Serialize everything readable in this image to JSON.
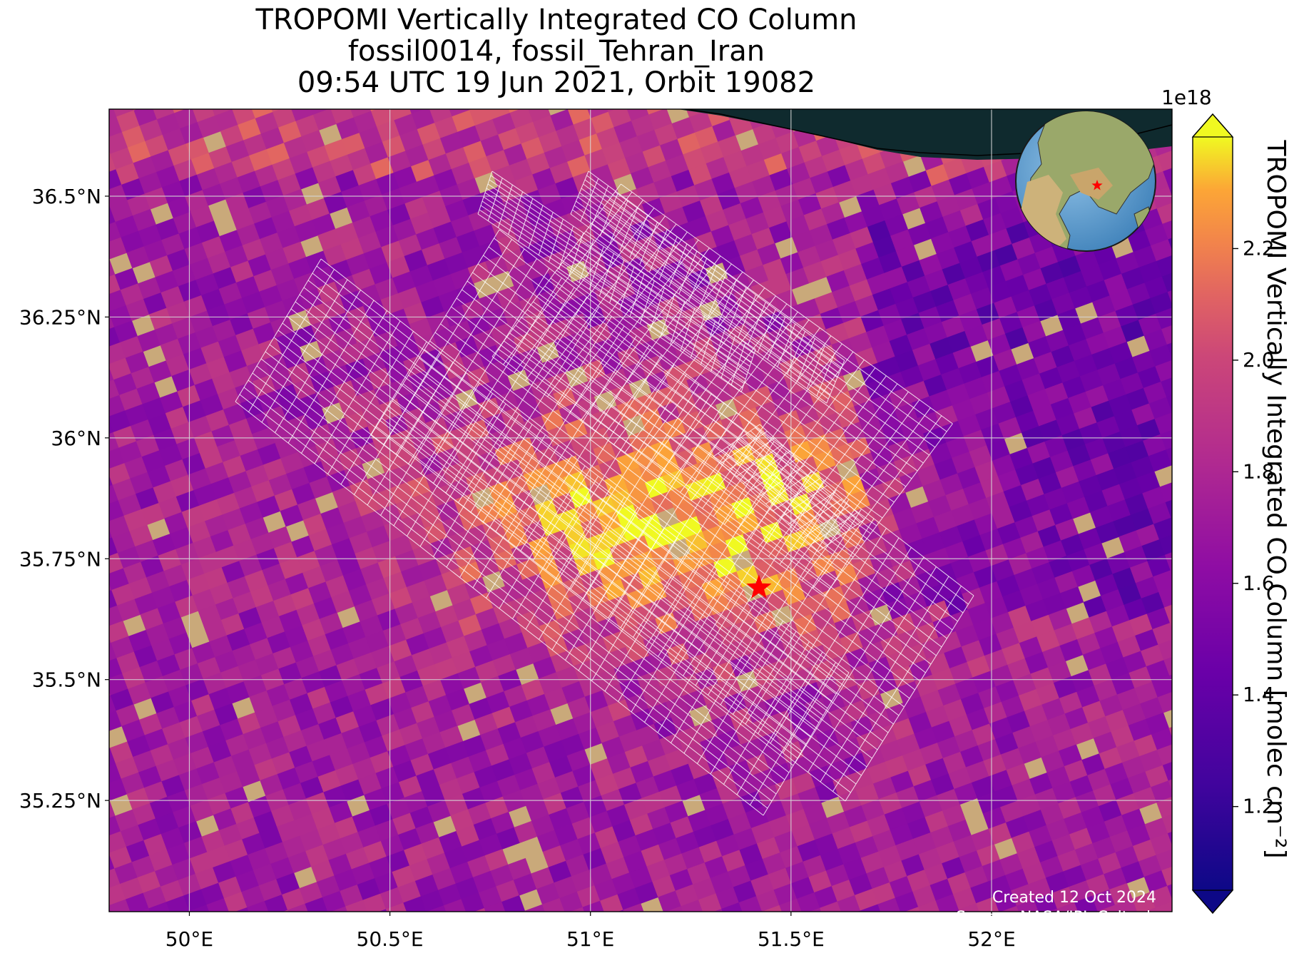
{
  "title": {
    "line1": "TROPOMI Vertically Integrated CO Column",
    "line2": "fossil0014, fossil_Tehran_Iran",
    "line3": "09:54 UTC 19 Jun 2021, Orbit 19082"
  },
  "credits": {
    "created": "Created 12 Oct 2024",
    "source": "Source: NASA/JPL-Caltech"
  },
  "map": {
    "lon_range": [
      49.8,
      52.45
    ],
    "lat_range": [
      35.02,
      36.68
    ],
    "lon_ticks": [
      {
        "value": 50.0,
        "label": "50°E"
      },
      {
        "value": 50.5,
        "label": "50.5°E"
      },
      {
        "value": 51.0,
        "label": "51°E"
      },
      {
        "value": 51.5,
        "label": "51.5°E"
      },
      {
        "value": 52.0,
        "label": "52°E"
      }
    ],
    "lat_ticks": [
      {
        "value": 36.5,
        "label": "36.5°N"
      },
      {
        "value": 36.25,
        "label": "36.25°N"
      },
      {
        "value": 36.0,
        "label": "36°N"
      },
      {
        "value": 35.75,
        "label": "35.75°N"
      },
      {
        "value": 35.5,
        "label": "35.5°N"
      },
      {
        "value": 35.25,
        "label": "35.25°N"
      }
    ],
    "gridlines": true,
    "marker": {
      "symbol": "star",
      "lon": 51.42,
      "lat": 35.69,
      "color": "#ff0000"
    },
    "inset_globe": {
      "placement": "top-right",
      "marker_color": "#ff0000"
    },
    "land_color": "#c9a97a",
    "sea_color": "#0f2a2e"
  },
  "colorbar": {
    "label": "TROPOMI Vertically Integrated CO Column [molec cm⁻²]",
    "exponent": "1e18",
    "min": 1.05,
    "max": 2.4,
    "ticks": [
      {
        "value": 1.2,
        "label": "1.2"
      },
      {
        "value": 1.4,
        "label": "1.4"
      },
      {
        "value": 1.6,
        "label": "1.6"
      },
      {
        "value": 1.8,
        "label": "1.8"
      },
      {
        "value": 2.0,
        "label": "2.0"
      },
      {
        "value": 2.2,
        "label": "2.2"
      }
    ],
    "colormap": "plasma",
    "extend": "both"
  }
}
